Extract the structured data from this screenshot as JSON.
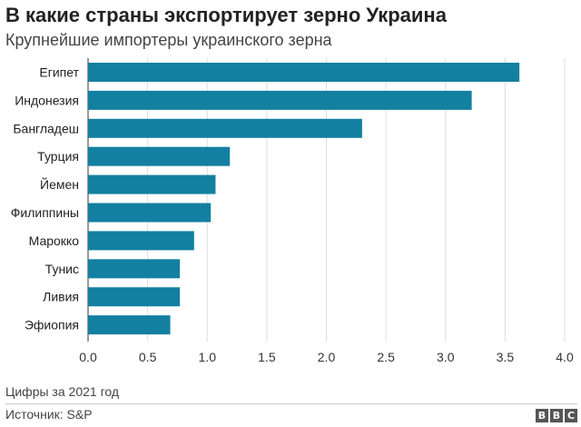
{
  "header": {
    "title": "В какие страны экспортирует зерно Украина",
    "subtitle": "Крупнейшие импортеры украинского зерна"
  },
  "footer": {
    "note": "Цифры за 2021 год",
    "source": "Источник: S&P",
    "logo_letters": [
      "B",
      "B",
      "C"
    ]
  },
  "chart_data": {
    "type": "bar",
    "orientation": "horizontal",
    "title": "В какие страны экспортирует зерно Украина",
    "subtitle": "Крупнейшие импортеры украинского зерна",
    "categories": [
      "Египет",
      "Индонезия",
      "Бангладеш",
      "Турция",
      "Йемен",
      "Филиппины",
      "Марокко",
      "Тунис",
      "Ливия",
      "Эфиопия"
    ],
    "values": [
      3.62,
      3.22,
      2.3,
      1.19,
      1.07,
      1.03,
      0.89,
      0.77,
      0.77,
      0.69
    ],
    "xlim": [
      0,
      4.0
    ],
    "xticks": [
      "0.0",
      "0.5",
      "1.0",
      "1.5",
      "2.0",
      "2.5",
      "3.0",
      "3.5",
      "4.0"
    ],
    "xtick_values": [
      0,
      0.5,
      1.0,
      1.5,
      2.0,
      2.5,
      3.0,
      3.5,
      4.0
    ],
    "grid": true,
    "legend": "none",
    "bar_color": "#1380a1",
    "grid_color": "#dddddd"
  }
}
